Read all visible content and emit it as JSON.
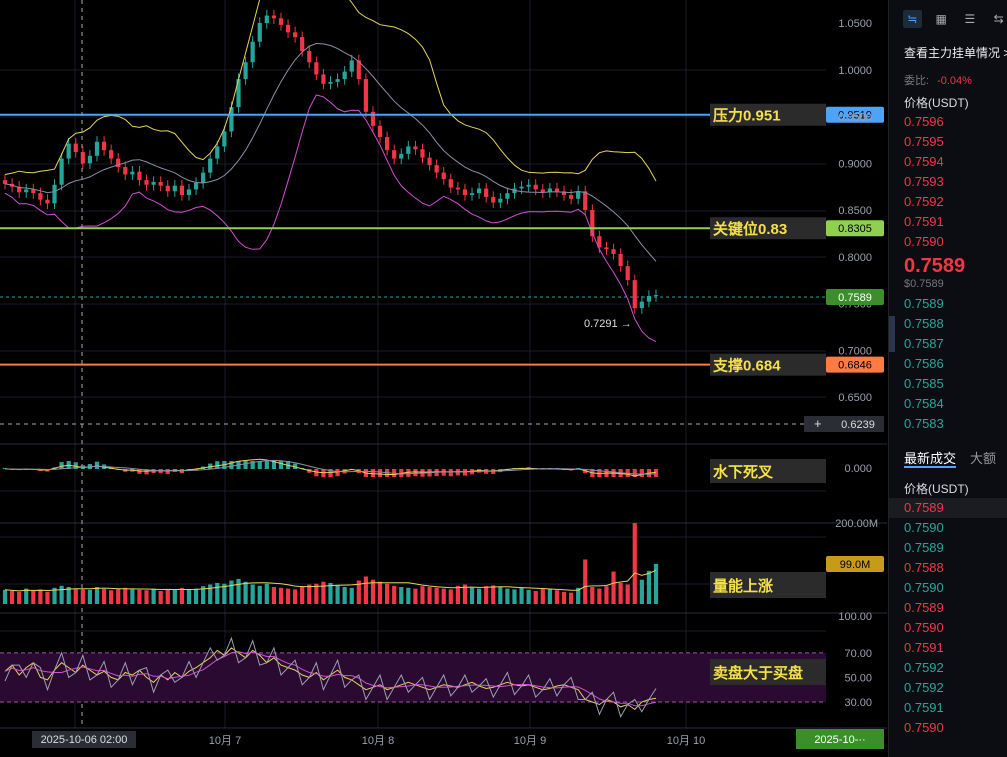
{
  "chart_data": {
    "type": "candlestick",
    "y_axis_labels": [
      "1.0500",
      "1.0000",
      "0.9500",
      "0.9000",
      "0.8500",
      "0.8000",
      "0.7500",
      "0.7000",
      "0.6500"
    ],
    "x_axis_labels": [
      "10月 7",
      "10月 8",
      "10月 9",
      "10月 10"
    ],
    "crosshair_time": "2025-10-06 02:00",
    "last_time_tag": "2025-10-··",
    "current_price_label": "0.7589",
    "low_marker": "0.7291",
    "crosshair_price": "0.6239",
    "levels": [
      {
        "name": "压力0.951",
        "price": 0.9519,
        "label": "0.9519",
        "color": "#4fa3f7"
      },
      {
        "name": "关键位0.83",
        "price": 0.8305,
        "label": "0.8305",
        "color": "#8fd14f"
      },
      {
        "name": "支撑0.684",
        "price": 0.6846,
        "label": "0.6846",
        "color": "#ff7a45"
      }
    ],
    "macd": {
      "label": "水下死叉",
      "axis_labels": [
        "0.000"
      ]
    },
    "volume": {
      "label": "量能上涨",
      "axis_labels": [
        "200.00M",
        "99.0M"
      ]
    },
    "kdj": {
      "label": "卖盘大于买盘",
      "axis_labels": [
        "100.00",
        "70.00",
        "50.00",
        "30.00"
      ]
    },
    "closes": [
      0.878,
      0.875,
      0.869,
      0.872,
      0.868,
      0.861,
      0.857,
      0.877,
      0.905,
      0.921,
      0.912,
      0.9,
      0.908,
      0.923,
      0.914,
      0.905,
      0.896,
      0.888,
      0.891,
      0.882,
      0.877,
      0.88,
      0.876,
      0.87,
      0.876,
      0.866,
      0.872,
      0.879,
      0.89,
      0.905,
      0.918,
      0.934,
      0.96,
      0.99,
      1.008,
      1.03,
      1.05,
      1.058,
      1.055,
      1.048,
      1.04,
      1.035,
      1.02,
      1.008,
      0.995,
      0.985,
      0.987,
      0.99,
      0.998,
      1.01,
      0.99,
      0.955,
      0.94,
      0.928,
      0.914,
      0.905,
      0.91,
      0.918,
      0.915,
      0.906,
      0.898,
      0.89,
      0.883,
      0.874,
      0.872,
      0.866,
      0.868,
      0.873,
      0.864,
      0.858,
      0.862,
      0.868,
      0.873,
      0.875,
      0.877,
      0.872,
      0.869,
      0.873,
      0.87,
      0.866,
      0.862,
      0.87,
      0.85,
      0.822,
      0.81,
      0.808,
      0.803,
      0.79,
      0.775,
      0.745,
      0.752,
      0.758,
      0.759
    ],
    "volumes": [
      35,
      32,
      30,
      38,
      33,
      36,
      30,
      40,
      45,
      42,
      38,
      36,
      35,
      42,
      37,
      34,
      38,
      40,
      36,
      35,
      34,
      38,
      32,
      36,
      35,
      40,
      36,
      38,
      44,
      48,
      52,
      50,
      58,
      62,
      55,
      48,
      45,
      50,
      42,
      40,
      38,
      36,
      44,
      48,
      50,
      55,
      52,
      46,
      42,
      40,
      58,
      68,
      60,
      55,
      50,
      45,
      42,
      40,
      38,
      44,
      42,
      40,
      38,
      36,
      45,
      48,
      40,
      38,
      44,
      46,
      42,
      38,
      36,
      40,
      35,
      32,
      38,
      36,
      34,
      30,
      28,
      40,
      110,
      42,
      38,
      44,
      80,
      52,
      48,
      200,
      60,
      82,
      99
    ],
    "k_values": [
      55,
      60,
      52,
      58,
      62,
      50,
      48,
      56,
      62,
      58,
      54,
      60,
      56,
      52,
      55,
      50,
      48,
      54,
      52,
      56,
      50,
      46,
      52,
      48,
      54,
      50,
      55,
      58,
      62,
      66,
      72,
      68,
      74,
      70,
      66,
      72,
      68,
      62,
      66,
      60,
      58,
      56,
      52,
      50,
      54,
      48,
      52,
      56,
      50,
      48,
      44,
      40,
      42,
      44,
      40,
      42,
      44,
      46,
      44,
      42,
      40,
      42,
      44,
      43,
      42,
      44,
      46,
      43,
      41,
      42,
      44,
      46,
      44,
      43,
      44,
      42,
      40,
      41,
      43,
      44,
      42,
      40,
      32,
      30,
      28,
      32,
      30,
      26,
      28,
      24,
      30,
      32,
      33
    ]
  },
  "side": {
    "tabs": [
      "≒",
      "▦",
      "☰",
      "⇆"
    ],
    "title": "查看主力挂单情况 >",
    "ratio_label": "委比:",
    "ratio_value": "-0.04%",
    "price_header": "价格(USDT)",
    "asks": [
      "0.7596",
      "0.7595",
      "0.7594",
      "0.7593",
      "0.7592",
      "0.7591",
      "0.7590"
    ],
    "last_price": "0.7589",
    "last_price_sub": "$0.7589",
    "bids": [
      "0.7589",
      "0.7588",
      "0.7587",
      "0.7586",
      "0.7585",
      "0.7584",
      "0.7583"
    ],
    "tab_trades": "最新成交",
    "tab_big": "大额",
    "trades_header": "价格(USDT)",
    "trades": [
      {
        "p": "0.7589",
        "c": "red"
      },
      {
        "p": "0.7590",
        "c": "green"
      },
      {
        "p": "0.7589",
        "c": "green"
      },
      {
        "p": "0.7588",
        "c": "red"
      },
      {
        "p": "0.7590",
        "c": "green"
      },
      {
        "p": "0.7589",
        "c": "red"
      },
      {
        "p": "0.7590",
        "c": "red"
      },
      {
        "p": "0.7591",
        "c": "red"
      },
      {
        "p": "0.7592",
        "c": "green"
      },
      {
        "p": "0.7592",
        "c": "green"
      },
      {
        "p": "0.7591",
        "c": "green"
      },
      {
        "p": "0.7590",
        "c": "red"
      }
    ]
  }
}
